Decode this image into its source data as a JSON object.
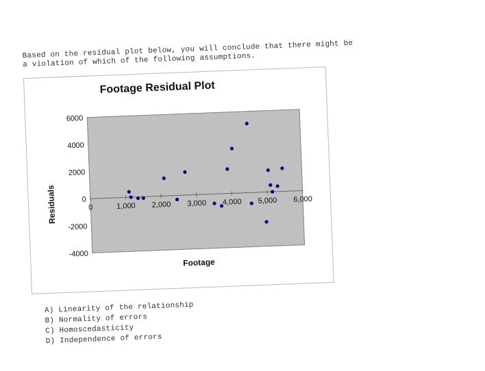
{
  "question": {
    "line1": "Based on the residual plot below, you will conclude that there might be",
    "line2": "a violation of which of the following assumptions."
  },
  "chart_data": {
    "type": "scatter",
    "title": "Footage Residual Plot",
    "xlabel": "Footage",
    "ylabel": "Residuals",
    "xlim": [
      0,
      6000
    ],
    "ylim": [
      -4000,
      6000
    ],
    "x_ticks": [
      "0",
      "1,000",
      "2,000",
      "3,000",
      "4,000",
      "5,000",
      "6,000"
    ],
    "y_ticks": [
      "6000",
      "4000",
      "2000",
      "0",
      "-2000",
      "-4000"
    ],
    "plot_background": "#c0c0c0",
    "marker_color": "#000080",
    "points": [
      {
        "x": 1100,
        "y": 400
      },
      {
        "x": 1150,
        "y": 0
      },
      {
        "x": 1350,
        "y": -100
      },
      {
        "x": 1500,
        "y": -100
      },
      {
        "x": 2100,
        "y": 1300
      },
      {
        "x": 2450,
        "y": -300
      },
      {
        "x": 2700,
        "y": 1700
      },
      {
        "x": 3500,
        "y": -700
      },
      {
        "x": 3700,
        "y": -900
      },
      {
        "x": 3900,
        "y": 1800
      },
      {
        "x": 4050,
        "y": 3300
      },
      {
        "x": 4500,
        "y": 5100
      },
      {
        "x": 4550,
        "y": -800
      },
      {
        "x": 4950,
        "y": -2200
      },
      {
        "x": 5050,
        "y": 1600
      },
      {
        "x": 5100,
        "y": 500
      },
      {
        "x": 5150,
        "y": 0
      },
      {
        "x": 5300,
        "y": 400
      },
      {
        "x": 5450,
        "y": 1700
      }
    ]
  },
  "options": [
    "A) Linearity of the relationship",
    "B) Normality of errors",
    "C) Homoscedasticity",
    "D) Independence of errors"
  ]
}
